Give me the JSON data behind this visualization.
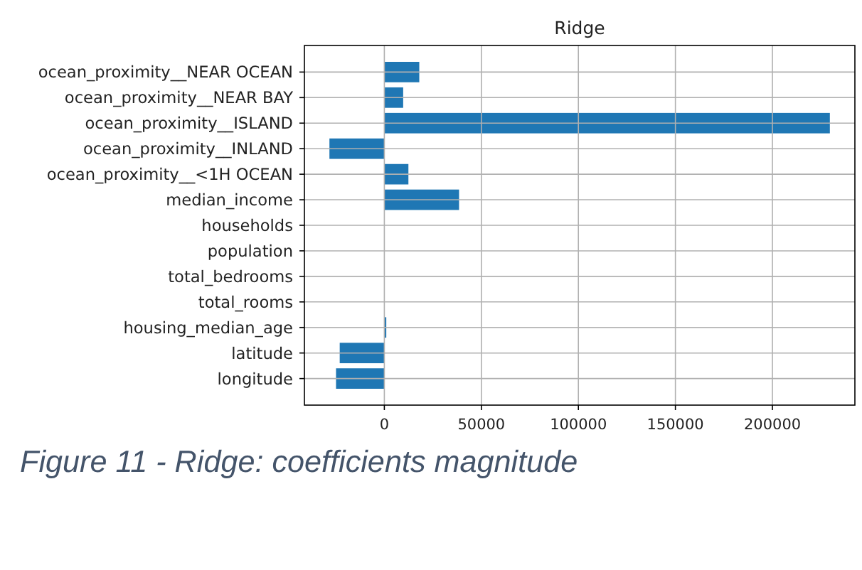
{
  "chart_data": {
    "type": "bar",
    "orientation": "horizontal",
    "title": "Ridge",
    "categories": [
      "ocean_proximity__NEAR OCEAN",
      "ocean_proximity__NEAR BAY",
      "ocean_proximity__ISLAND",
      "ocean_proximity__INLAND",
      "ocean_proximity__<1H OCEAN",
      "median_income",
      "households",
      "population",
      "total_bedrooms",
      "total_rooms",
      "housing_median_age",
      "latitude",
      "longitude"
    ],
    "values": [
      18000,
      9700,
      229600,
      -28300,
      12400,
      38500,
      0,
      0,
      0,
      0,
      1000,
      -23000,
      -24900
    ],
    "color": "#1f77b4",
    "xlim": [
      -41200,
      242500
    ],
    "xticks": [
      0,
      50000,
      100000,
      150000,
      200000
    ],
    "grid": true,
    "annotations": [
      "Figure 11 - Ridge: coefficients magnitude"
    ]
  }
}
